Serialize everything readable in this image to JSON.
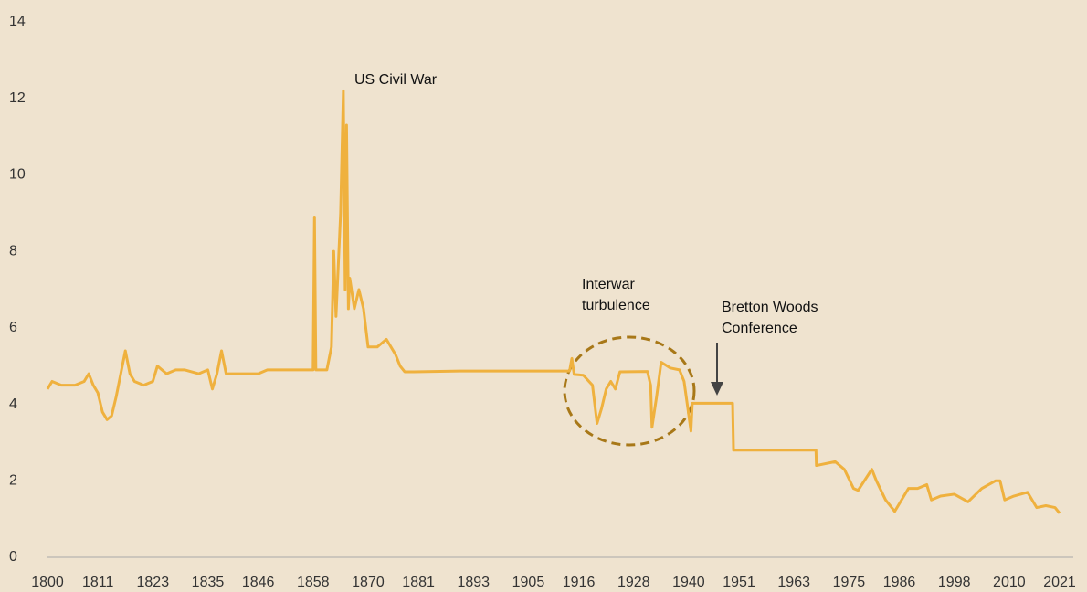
{
  "chart_data": {
    "type": "line",
    "x": [
      1800,
      1801,
      1803,
      1806,
      1808,
      1809,
      1810,
      1811,
      1812,
      1813,
      1814,
      1815,
      1816,
      1817,
      1818,
      1819,
      1821,
      1823,
      1824,
      1826,
      1828,
      1830,
      1833,
      1835,
      1836,
      1837,
      1838,
      1839,
      1842,
      1846,
      1848,
      1850,
      1857,
      1858,
      1858.3,
      1858.6,
      1861,
      1862,
      1862.5,
      1863,
      1864,
      1864.6,
      1865,
      1865.3,
      1865.7,
      1866,
      1867,
      1868,
      1869,
      1870,
      1872,
      1874,
      1876,
      1877,
      1878,
      1880,
      1890,
      1900,
      1914,
      1914.5,
      1915,
      1917,
      1919,
      1920,
      1921,
      1922,
      1923,
      1924,
      1925,
      1931,
      1931.7,
      1932,
      1933,
      1934,
      1936,
      1938,
      1939,
      1939.7,
      1940.5,
      1940.8,
      1949.6,
      1949.8,
      1967.8,
      1967.9,
      1972,
      1974,
      1976,
      1977,
      1980,
      1981,
      1983,
      1985,
      1987,
      1988,
      1990,
      1992,
      1993,
      1995,
      1998,
      2001,
      2004,
      2007,
      2008,
      2009,
      2011,
      2014,
      2015,
      2016,
      2018,
      2020,
      2021
    ],
    "series": [
      {
        "color": "#efb13e",
        "values": [
          4.4,
          4.6,
          4.5,
          4.5,
          4.6,
          4.8,
          4.5,
          4.3,
          3.8,
          3.6,
          3.7,
          4.2,
          4.8,
          5.4,
          4.8,
          4.6,
          4.5,
          4.6,
          5.0,
          4.8,
          4.9,
          4.9,
          4.8,
          4.9,
          4.4,
          4.8,
          5.4,
          4.8,
          4.8,
          4.8,
          4.9,
          4.9,
          4.9,
          4.9,
          8.9,
          4.9,
          4.9,
          5.5,
          8.0,
          6.3,
          9.0,
          12.2,
          7.0,
          11.3,
          6.5,
          7.3,
          6.5,
          7.0,
          6.5,
          5.5,
          5.5,
          5.7,
          5.3,
          5.0,
          4.85,
          4.85,
          4.87,
          4.87,
          4.87,
          5.2,
          4.78,
          4.76,
          4.5,
          3.5,
          3.9,
          4.4,
          4.6,
          4.4,
          4.85,
          4.86,
          4.5,
          3.4,
          4.2,
          5.1,
          4.95,
          4.9,
          4.6,
          4.0,
          3.3,
          4.03,
          4.03,
          2.8,
          2.8,
          2.4,
          2.5,
          2.3,
          1.8,
          1.75,
          2.3,
          2.0,
          1.5,
          1.2,
          1.6,
          1.8,
          1.8,
          1.9,
          1.5,
          1.6,
          1.65,
          1.45,
          1.8,
          2.0,
          2.0,
          1.5,
          1.6,
          1.7,
          1.5,
          1.3,
          1.35,
          1.3,
          1.15
        ]
      }
    ],
    "xlim": [
      1800,
      2021
    ],
    "xticks": [
      1800,
      1811,
      1823,
      1835,
      1846,
      1858,
      1870,
      1881,
      1893,
      1905,
      1916,
      1928,
      1940,
      1951,
      1963,
      1975,
      1986,
      1998,
      2010,
      2021
    ],
    "ylim": [
      0,
      14
    ],
    "yticks": [
      0,
      2,
      4,
      6,
      8,
      10,
      12,
      14
    ],
    "grid": false,
    "annotations": [
      {
        "text": [
          "US Civil War"
        ]
      },
      {
        "text": [
          "Interwar",
          "turbulence"
        ]
      },
      {
        "text": [
          "Bretton Woods",
          "Conference"
        ]
      }
    ]
  }
}
